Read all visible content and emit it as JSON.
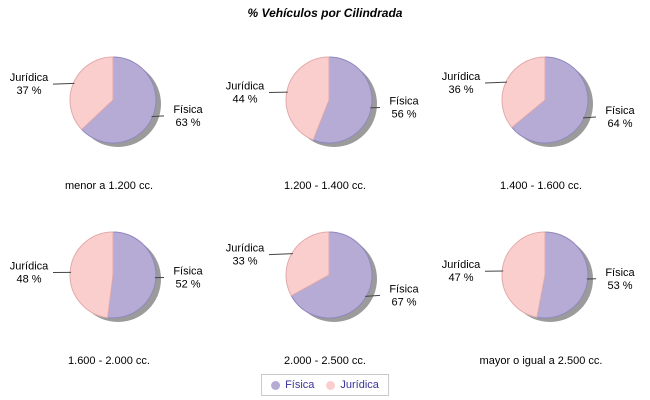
{
  "chart_data": {
    "type": "pie",
    "title": "% Vehículos por Cilindrada",
    "series": [
      "Física",
      "Jurídica"
    ],
    "value_suffix": " %",
    "legend": {
      "position": "bottom",
      "entries": [
        "Física",
        "Jurídica"
      ]
    },
    "colors": {
      "fisica_fill": "#b5abd5",
      "fisica_outline": "#9187c0",
      "juridica_fill": "#fbcece",
      "juridica_outline": "#e2abab",
      "shadow": "#9b9b9b",
      "leader_line": "#444444",
      "label_text": "#000000",
      "legend_text": "#3a3399",
      "legend_border": "#c8c8cc"
    },
    "pies": [
      {
        "category": "menor a 1.200 cc.",
        "values": {
          "fisica": 63,
          "juridica": 37
        }
      },
      {
        "category": "1.200 - 1.400 cc.",
        "values": {
          "fisica": 56,
          "juridica": 44
        }
      },
      {
        "category": "1.400 - 1.600 cc.",
        "values": {
          "fisica": 64,
          "juridica": 36
        }
      },
      {
        "category": "1.600 - 2.000 cc.",
        "values": {
          "fisica": 52,
          "juridica": 48
        }
      },
      {
        "category": "2.000 - 2.500 cc.",
        "values": {
          "fisica": 67,
          "juridica": 33
        }
      },
      {
        "category": "mayor o igual a 2.500 cc.",
        "values": {
          "fisica": 53,
          "juridica": 47
        }
      }
    ]
  }
}
